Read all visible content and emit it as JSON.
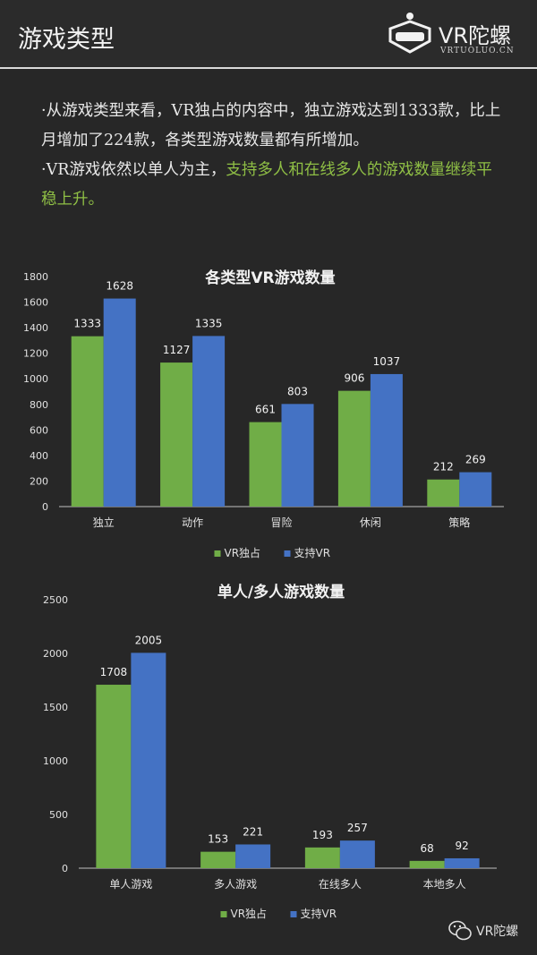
{
  "header": {
    "title": "游戏类型",
    "logo_text": "VR陀螺",
    "logo_sub": "VRTUOLUO.CN"
  },
  "intro": {
    "p1": "·从游戏类型来看，VR独占的内容中，独立游戏达到1333款，比上月增加了224款，各类型游戏数量都有所增加。",
    "p2_plain": "·VR游戏依然以单人为主，",
    "p2_highlight": "支持多人和在线多人的游戏数量继续平稳上升。"
  },
  "colors": {
    "green": "#70ad47",
    "blue": "#4472c4",
    "axis": "#bfbfbf"
  },
  "chart_data": [
    {
      "type": "bar",
      "title": "各类型VR游戏数量",
      "categories": [
        "独立",
        "动作",
        "冒险",
        "休闲",
        "策略"
      ],
      "series": [
        {
          "name": "VR独占",
          "values": [
            1333,
            1127,
            661,
            906,
            212
          ]
        },
        {
          "name": "支持VR",
          "values": [
            1628,
            1335,
            803,
            1037,
            269
          ]
        }
      ],
      "ylim": [
        0,
        1800
      ],
      "yticks": [
        0,
        200,
        400,
        600,
        800,
        1000,
        1200,
        1400,
        1600,
        1800
      ],
      "legend": "bottom",
      "grid": false
    },
    {
      "type": "bar",
      "title": "单人/多人游戏数量",
      "categories": [
        "单人游戏",
        "多人游戏",
        "在线多人",
        "本地多人"
      ],
      "series": [
        {
          "name": "VR独占",
          "values": [
            1708,
            153,
            193,
            68
          ]
        },
        {
          "name": "支持VR",
          "values": [
            2005,
            221,
            257,
            92
          ]
        }
      ],
      "ylim": [
        0,
        2500
      ],
      "yticks": [
        0,
        500,
        1000,
        1500,
        2000,
        2500
      ],
      "legend": "bottom",
      "grid": false
    }
  ],
  "watermark": {
    "text": "VR陀螺"
  }
}
